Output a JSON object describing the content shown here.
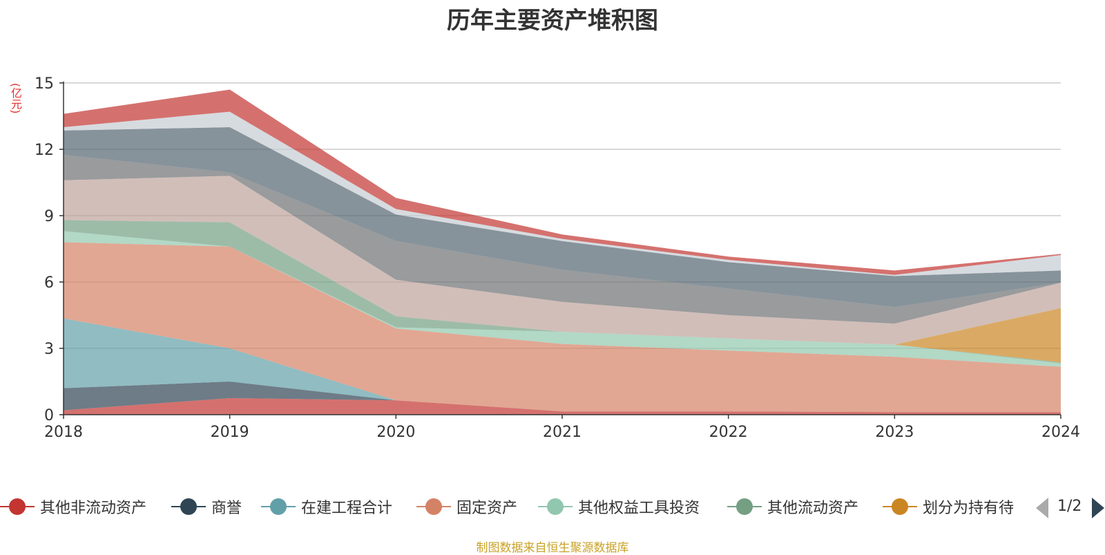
{
  "chart_data": {
    "type": "area",
    "stacked": true,
    "title": "历年主要资产堆积图",
    "ylabel": "(亿元)",
    "x": [
      "2018",
      "2019",
      "2020",
      "2021",
      "2022",
      "2023",
      "2024"
    ],
    "ylim": [
      0,
      15
    ],
    "yticks": [
      0,
      3,
      6,
      9,
      12,
      15
    ],
    "grid": true,
    "series": [
      {
        "name": "其他非流动资产",
        "color": "#c23531",
        "values": [
          0.2,
          0.75,
          0.65,
          0.15,
          0.15,
          0.12,
          0.12
        ]
      },
      {
        "name": "商誉",
        "color": "#2f4554",
        "values": [
          1.0,
          0.75,
          0.0,
          0.0,
          0.0,
          0.0,
          0.0
        ]
      },
      {
        "name": "在建工程合计",
        "color": "#61a0a8",
        "values": [
          3.15,
          1.5,
          0.0,
          0.0,
          0.0,
          0.0,
          0.0
        ]
      },
      {
        "name": "固定资产",
        "color": "#d48265",
        "values": [
          3.45,
          4.6,
          3.25,
          3.05,
          2.75,
          2.5,
          2.05
        ]
      },
      {
        "name": "其他权益工具投资",
        "color": "#91c7ae",
        "values": [
          0.5,
          0.0,
          0.05,
          0.55,
          0.55,
          0.55,
          0.15
        ]
      },
      {
        "name": "其他流动资产",
        "color": "#749f83",
        "values": [
          0.5,
          1.1,
          0.5,
          0.0,
          0.0,
          0.0,
          0.05
        ]
      },
      {
        "name": "划分为持有待",
        "color": "#ca8622",
        "values": [
          0.0,
          0.0,
          0.0,
          0.0,
          0.0,
          0.0,
          2.45
        ]
      },
      {
        "name": "",
        "color": "#bda29a",
        "values": [
          1.8,
          2.1,
          1.65,
          1.35,
          1.05,
          0.95,
          1.15
        ]
      },
      {
        "name": "",
        "color": "#6e7074",
        "values": [
          1.15,
          0.15,
          1.75,
          1.45,
          1.2,
          0.75,
          0.0
        ]
      },
      {
        "name": "",
        "color": "#546570",
        "values": [
          1.1,
          2.05,
          1.2,
          1.3,
          1.2,
          1.4,
          0.55
        ]
      },
      {
        "name": "",
        "color": "#c4ccd3",
        "values": [
          0.15,
          0.7,
          0.25,
          0.1,
          0.1,
          0.05,
          0.7
        ]
      },
      {
        "name": "",
        "color": "#c23531",
        "values": [
          0.6,
          1.0,
          0.5,
          0.2,
          0.15,
          0.2,
          0.05
        ]
      }
    ]
  },
  "legend": {
    "items": [
      {
        "label": "其他非流动资产",
        "color": "#c23531"
      },
      {
        "label": "商誉",
        "color": "#2f4554"
      },
      {
        "label": "在建工程合计",
        "color": "#61a0a8"
      },
      {
        "label": "固定资产",
        "color": "#d48265"
      },
      {
        "label": "其他权益工具投资",
        "color": "#91c7ae"
      },
      {
        "label": "其他流动资产",
        "color": "#749f83"
      },
      {
        "label": "划分为持有待",
        "color": "#ca8622"
      }
    ],
    "page_indicator": "1/2"
  },
  "source": "制图数据来自恒生聚源数据库"
}
